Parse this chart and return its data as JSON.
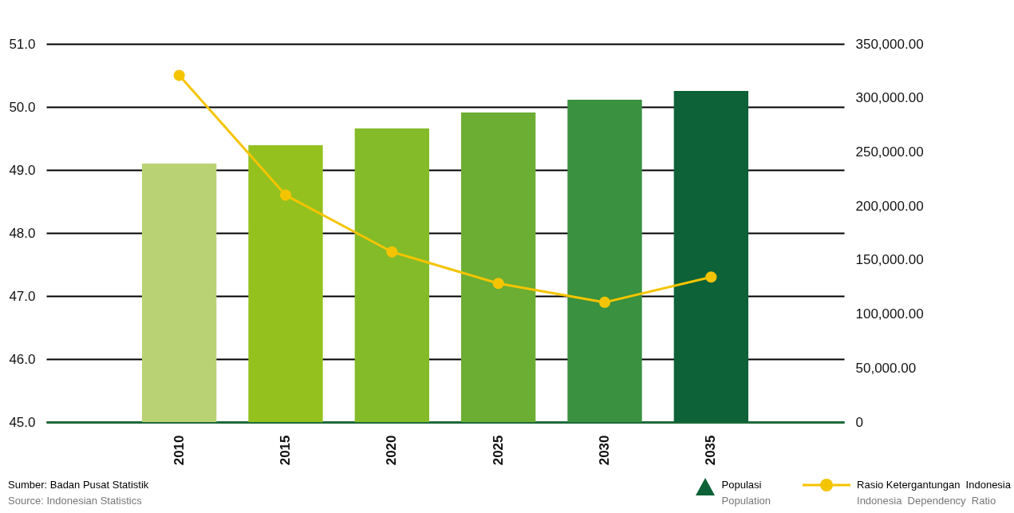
{
  "chart_data": {
    "type": "bar",
    "categories": [
      "2010",
      "2015",
      "2020",
      "2025",
      "2030",
      "2035"
    ],
    "series": [
      {
        "name": "Populasi\nPopulation",
        "axis": "y2",
        "color": "#0d6237",
        "colors": [
          "#b9d274",
          "#95c11f",
          "#84bb29",
          "#6cad33",
          "#3a913f",
          "#0d6237"
        ],
        "values": [
          239200,
          256200,
          271700,
          286500,
          298300,
          306400
        ]
      },
      {
        "name": "Rasio Ketergantungan  Indonesia\nIndonesia  Dependency  Ratio",
        "type": "line",
        "color": "#f5c400",
        "marker": "circle",
        "values": [
          50.5,
          48.6,
          47.7,
          47.2,
          46.9,
          47.3
        ]
      }
    ],
    "ylim": [
      45,
      51
    ],
    "yticks": [
      {
        "value": 45,
        "label": "45.0"
      },
      {
        "value": 46,
        "label": "46.0"
      },
      {
        "value": 47,
        "label": "47.0"
      },
      {
        "value": 48,
        "label": "48.0"
      },
      {
        "value": 49,
        "label": "49.0"
      },
      {
        "value": 50,
        "label": "50.0"
      },
      {
        "value": 51,
        "label": "51.0"
      }
    ],
    "y2lim": [
      0,
      350000
    ],
    "y2ticks": [
      0,
      {
        "value": 50000,
        "label": "50,000.00"
      },
      {
        "value": 100000,
        "label": "100,000.00"
      },
      {
        "value": 150000,
        "label": "150,000.00"
      },
      {
        "value": 200000,
        "label": "200,000.00"
      },
      {
        "value": 250000,
        "label": "250,000.00"
      },
      {
        "value": 300000,
        "label": "300,000.00"
      },
      {
        "value": 350000,
        "label": "350,000.00"
      }
    ],
    "grid": "y",
    "legend": "bottom right",
    "annotations": [
      "Sumber:  Badan  Pusat  Statistik",
      "Source:  Indonesian  Statistics"
    ]
  }
}
